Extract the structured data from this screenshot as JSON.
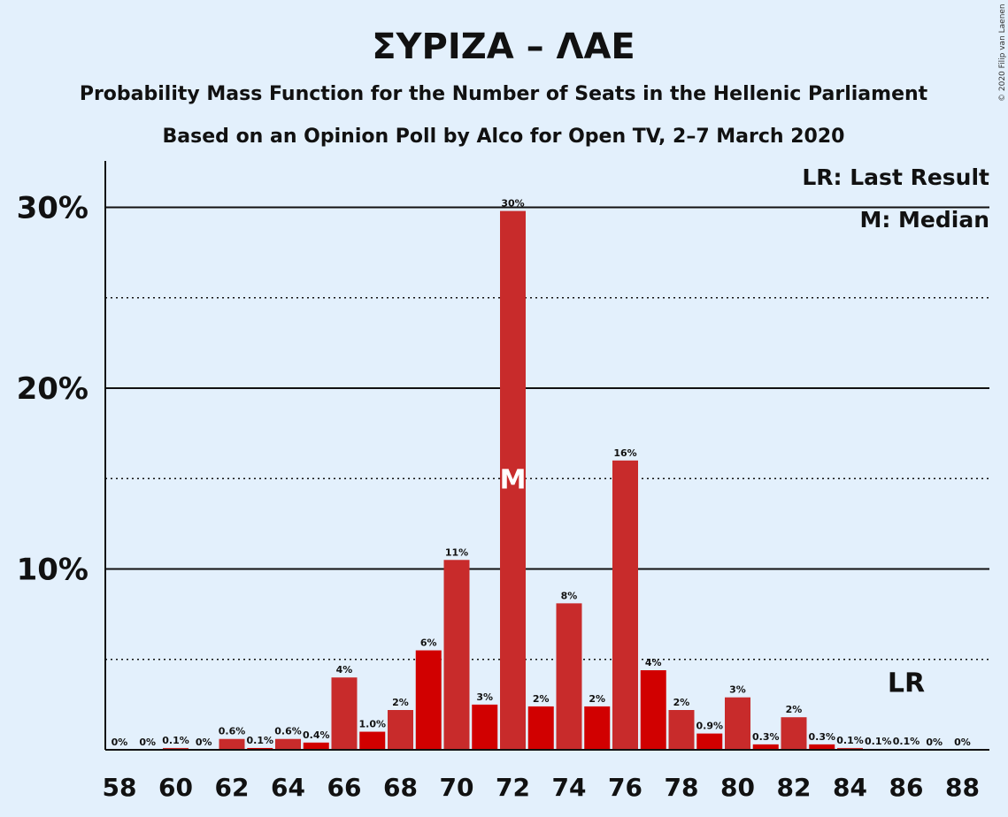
{
  "colors": {
    "background": "#e3f0fc",
    "bar_dark": "#d10000",
    "bar_light": "#c82b2b",
    "text": "#111111",
    "median_text": "#ffffff"
  },
  "chart_data": {
    "type": "bar",
    "title": "ΣΥΡΙΖΑ – ΛΑΕ",
    "subtitle": "Probability Mass Function for the Number of Seats in the Hellenic Parliament",
    "subtitle2": "Based on an Opinion Poll by Alco for Open TV, 2–7 March 2020",
    "copyright": "© 2020 Filip van Laenen",
    "xlabel": "",
    "ylabel": "",
    "ylim": [
      0,
      32.5
    ],
    "grid": "solid at 10%, 20%, 30%; dotted at 5%, 15%, 25%",
    "y_ticks": [
      {
        "value": 10,
        "label": "10%"
      },
      {
        "value": 20,
        "label": "20%"
      },
      {
        "value": 30,
        "label": "30%"
      }
    ],
    "x_ticks": [
      "58",
      "60",
      "62",
      "64",
      "66",
      "68",
      "70",
      "72",
      "74",
      "76",
      "78",
      "80",
      "82",
      "84",
      "86",
      "88"
    ],
    "legend": {
      "position": "top-right",
      "last_result": "LR: Last Result",
      "median": "M: Median"
    },
    "median_seat": 72,
    "median_label": "M",
    "last_result_seat": 86,
    "last_result_label": "LR",
    "series": [
      {
        "seats": [
          58,
          59,
          60,
          61,
          62,
          63,
          64,
          65,
          66,
          67,
          68,
          69,
          70,
          71,
          72,
          73,
          74,
          75,
          76,
          77,
          78,
          79,
          80,
          81,
          82,
          83,
          84,
          85,
          86,
          87,
          88
        ],
        "values": [
          0,
          0,
          0.1,
          0,
          0.6,
          0.1,
          0.6,
          0.4,
          4.0,
          1.0,
          2.2,
          5.5,
          10.5,
          2.5,
          29.8,
          2.4,
          8.1,
          2.4,
          16.0,
          4.4,
          2.2,
          0.9,
          2.9,
          0.3,
          1.8,
          0.3,
          0.1,
          0.05,
          0.05,
          0,
          0
        ],
        "labels": [
          "0%",
          "0%",
          "0.1%",
          "0%",
          "0.6%",
          "0.1%",
          "0.6%",
          "0.4%",
          "4%",
          "1.0%",
          "2%",
          "6%",
          "11%",
          "3%",
          "30%",
          "2%",
          "8%",
          "2%",
          "16%",
          "4%",
          "2%",
          "0.9%",
          "3%",
          "0.3%",
          "2%",
          "0.3%",
          "0.1%",
          "0.1%",
          "0.1%",
          "0%",
          "0%"
        ]
      }
    ]
  }
}
